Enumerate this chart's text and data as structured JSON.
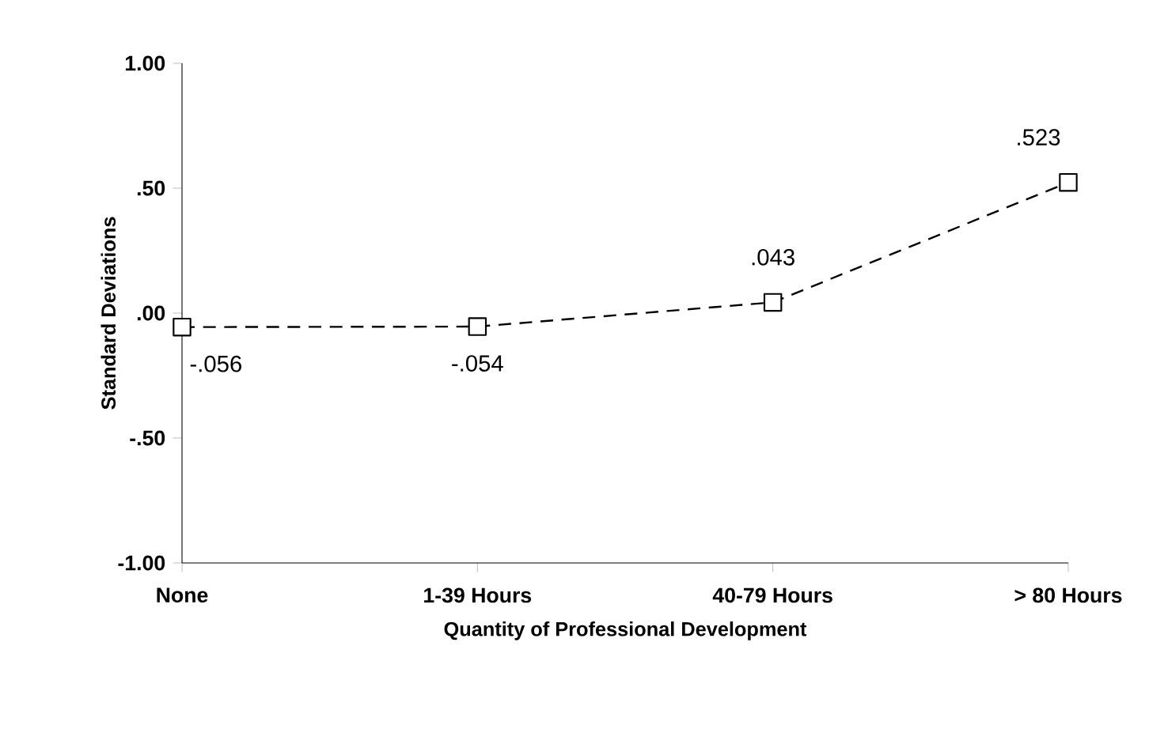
{
  "chart_data": {
    "type": "line",
    "xlabel": "Quantity of Professional Development",
    "ylabel": "Standard Deviations",
    "categories": [
      "None",
      "1-39 Hours",
      "40-79 Hours",
      "> 80 Hours"
    ],
    "values": [
      -0.056,
      -0.054,
      0.043,
      0.523
    ],
    "value_labels": [
      "-.056",
      "-.054",
      ".043",
      ".523"
    ],
    "color": "#000000",
    "marker": "square",
    "line_style": "dashed",
    "ylim": [
      -1,
      1
    ],
    "yticks": [
      {
        "value": 1,
        "label": "1.00"
      },
      {
        "value": 0.5,
        "label": ".50"
      },
      {
        "value": 0,
        "label": ".00"
      },
      {
        "value": -0.5,
        "label": "-.50"
      },
      {
        "value": -1,
        "label": "-1.00"
      }
    ]
  }
}
